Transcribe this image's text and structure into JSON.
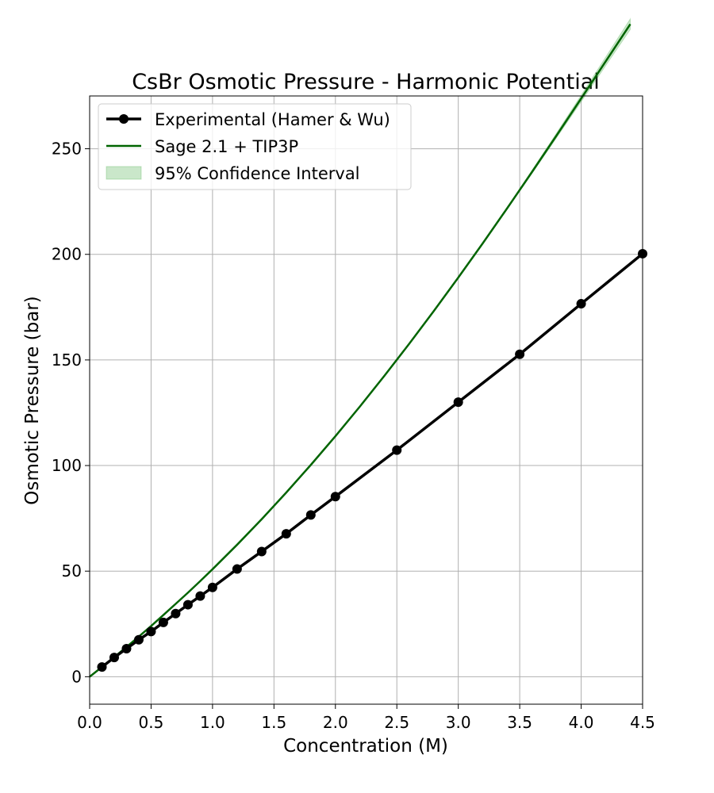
{
  "chart_data": {
    "type": "line",
    "title": "CsBr Osmotic Pressure - Harmonic Potential",
    "xlabel": "Concentration (M)",
    "ylabel": "Osmotic Pressure (bar)",
    "xlim": [
      0.0,
      4.5
    ],
    "ylim": [
      -13,
      275
    ],
    "xticks": [
      0.0,
      0.5,
      1.0,
      1.5,
      2.0,
      2.5,
      3.0,
      3.5,
      4.0,
      4.5
    ],
    "xtick_labels": [
      "0.0",
      "0.5",
      "1.0",
      "1.5",
      "2.0",
      "2.5",
      "3.0",
      "3.5",
      "4.0",
      "4.5"
    ],
    "yticks": [
      0,
      50,
      100,
      150,
      200,
      250
    ],
    "ytick_labels": [
      "0",
      "50",
      "100",
      "150",
      "200",
      "250"
    ],
    "grid": true,
    "legend_position": "top-left",
    "series": [
      {
        "name": "Experimental (Hamer & Wu)",
        "color": "#000000",
        "marker": "circle",
        "x": [
          0.1,
          0.2,
          0.3,
          0.4,
          0.5,
          0.6,
          0.7,
          0.8,
          0.9,
          1.0,
          1.2,
          1.4,
          1.6,
          1.8,
          2.0,
          2.5,
          3.0,
          3.5,
          4.0,
          4.5
        ],
        "y": [
          4.6,
          9.1,
          13.3,
          17.5,
          21.4,
          25.7,
          29.9,
          34.1,
          38.2,
          42.3,
          51.0,
          59.3,
          67.7,
          76.6,
          85.3,
          107.3,
          130.0,
          152.7,
          176.6,
          200.3
        ]
      },
      {
        "name": "Sage 2.1 + TIP3P",
        "color": "#006400",
        "marker": "none",
        "x": [
          0.0,
          0.1,
          0.2,
          0.3,
          0.4,
          0.5,
          0.6,
          0.7,
          0.8,
          0.9,
          1.0,
          1.2,
          1.4,
          1.6,
          1.8,
          2.0,
          2.2,
          2.4,
          2.6,
          2.8,
          3.0,
          3.2,
          3.4,
          3.6,
          3.8,
          4.0,
          4.2,
          4.4
        ],
        "y": [
          0.0,
          4.6,
          9.3,
          14.1,
          19.0,
          24.0,
          29.2,
          34.5,
          39.8,
          45.3,
          50.9,
          62.5,
          74.6,
          87.2,
          100.3,
          113.9,
          128.0,
          142.6,
          157.6,
          173.1,
          189.0,
          205.3,
          222.0,
          239.0,
          256.3,
          273.8,
          291.4,
          309.0
        ]
      }
    ],
    "confidence_interval": {
      "name": "95% Confidence Interval",
      "color": "#2ca02c",
      "opacity": 0.25,
      "x": [
        3.5,
        3.75,
        4.0,
        4.2,
        4.4
      ],
      "half_width": [
        0.5,
        1.0,
        1.5,
        2.0,
        2.5
      ]
    }
  }
}
